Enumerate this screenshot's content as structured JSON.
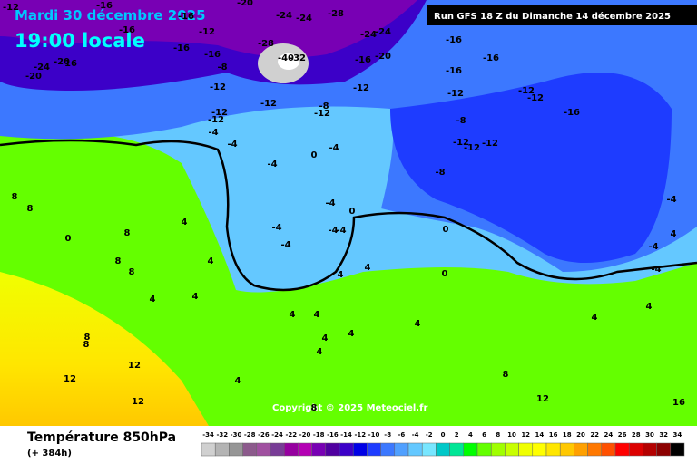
{
  "header": {
    "date": "Mardi 30 décembre 2025",
    "time": "19:00 locale",
    "run": "Run GFS 18 Z du Dimanche 14 décembre 2025",
    "copyright": "Copyright © 2025 Meteociel.fr"
  },
  "footer": {
    "title": "Température 850hPa",
    "lead": "(+ 384h)"
  },
  "scale": {
    "ticks": [
      -34,
      -32,
      -30,
      -28,
      -26,
      -24,
      -22,
      -20,
      -18,
      -16,
      -14,
      -12,
      -10,
      -8,
      -6,
      -4,
      -2,
      0,
      2,
      4,
      6,
      8,
      10,
      12,
      14,
      16,
      18,
      20,
      22,
      24,
      26,
      28,
      30,
      32,
      34
    ],
    "colors": [
      "#d0d0d0",
      "#b4b4b4",
      "#969696",
      "#8c5a8c",
      "#a050a0",
      "#783c96",
      "#9600a0",
      "#b400b4",
      "#7800b4",
      "#5000a0",
      "#3c00c8",
      "#0000e6",
      "#1e3cff",
      "#3c78ff",
      "#50a0ff",
      "#64c8ff",
      "#78e6ff",
      "#00c8c8",
      "#00e696",
      "#00ff00",
      "#64ff00",
      "#a0ff00",
      "#c8ff00",
      "#f0ff00",
      "#ffff00",
      "#ffe600",
      "#ffc800",
      "#ffa000",
      "#ff7800",
      "#ff5000",
      "#ff0000",
      "#dc0000",
      "#b40000",
      "#8c0000",
      "#000000"
    ]
  },
  "map": {
    "labels": [
      "-12",
      "-16",
      "-16",
      "-16",
      "-20",
      "-24",
      "-24",
      "-28",
      "-24",
      "-24",
      "-12",
      "-16",
      "-16",
      "-8",
      "-28",
      "-40",
      "-32",
      "-16",
      "-20",
      "-16",
      "-16",
      "-16",
      "-12",
      "-12",
      "-12",
      "-12",
      "-12",
      "-12",
      "-16",
      "-12",
      "-12",
      "-4",
      "-8",
      "-12",
      "-8",
      "-12",
      "-12",
      "-12",
      "-4",
      "-4",
      "0",
      "-4",
      "-8",
      "-4",
      "-4",
      "-4",
      "-4",
      "-4",
      "0",
      "0",
      "0",
      "0",
      "4",
      "8",
      "4",
      "8",
      "8",
      "4",
      "4",
      "4",
      "4",
      "4",
      "4",
      "4",
      "4",
      "4",
      "4",
      "4",
      "8",
      "8",
      "12",
      "12",
      "12",
      "8",
      "8",
      "12",
      "16",
      "8",
      "8",
      "4",
      "4",
      "4",
      "-4",
      "-4",
      "-4",
      "-24",
      "-20",
      "16",
      "-20"
    ]
  }
}
